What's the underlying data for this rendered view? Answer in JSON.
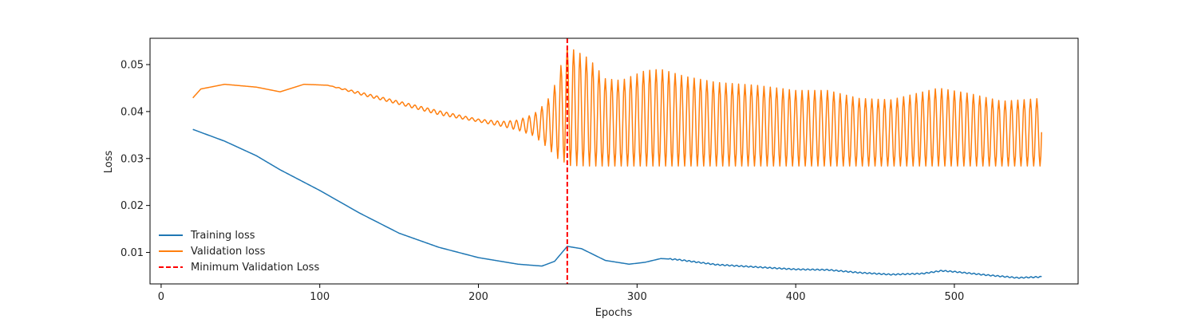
{
  "chart_data": {
    "type": "line",
    "xlabel": "Epochs",
    "ylabel": "Loss",
    "xlim": [
      -7,
      578
    ],
    "ylim": [
      0.0033,
      0.0556
    ],
    "x_ticks": [
      0,
      100,
      200,
      300,
      400,
      500
    ],
    "y_ticks": [
      0.01,
      0.02,
      0.03,
      0.04,
      0.05
    ],
    "x_tick_labels": [
      "0",
      "100",
      "200",
      "300",
      "400",
      "500"
    ],
    "y_tick_labels": [
      "0.01",
      "0.02",
      "0.03",
      "0.04",
      "0.05"
    ],
    "grid": false,
    "legend_position": "lower-left",
    "x_range": [
      20,
      555
    ],
    "series": [
      {
        "name": "Training loss",
        "color": "#1f77b4",
        "style": "solid",
        "points": [
          [
            20,
            0.0362
          ],
          [
            40,
            0.0337
          ],
          [
            60,
            0.0306
          ],
          [
            75,
            0.0276
          ],
          [
            100,
            0.0232
          ],
          [
            125,
            0.0184
          ],
          [
            150,
            0.0141
          ],
          [
            175,
            0.0111
          ],
          [
            200,
            0.0089
          ],
          [
            225,
            0.0075
          ],
          [
            240,
            0.0071
          ],
          [
            248,
            0.0081
          ],
          [
            256,
            0.0113
          ],
          [
            265,
            0.0108
          ],
          [
            280,
            0.0083
          ],
          [
            295,
            0.0075
          ],
          [
            305,
            0.0079
          ],
          [
            315,
            0.0087
          ],
          [
            325,
            0.0085
          ],
          [
            350,
            0.0074
          ],
          [
            375,
            0.0069
          ],
          [
            400,
            0.0064
          ],
          [
            420,
            0.0063
          ],
          [
            440,
            0.0057
          ],
          [
            460,
            0.0053
          ],
          [
            480,
            0.0055
          ],
          [
            492,
            0.0061
          ],
          [
            500,
            0.0059
          ],
          [
            520,
            0.0052
          ],
          [
            540,
            0.0046
          ],
          [
            555,
            0.0048
          ]
        ]
      },
      {
        "name": "Validation loss",
        "color": "#ff7f0e",
        "style": "solid",
        "oscillation_period": 4,
        "upper": [
          [
            20,
            0.0429
          ],
          [
            25,
            0.0448
          ],
          [
            40,
            0.0458
          ],
          [
            60,
            0.0452
          ],
          [
            75,
            0.0442
          ],
          [
            90,
            0.0458
          ],
          [
            105,
            0.0456
          ],
          [
            125,
            0.0442
          ],
          [
            150,
            0.0422
          ],
          [
            175,
            0.0402
          ],
          [
            200,
            0.0384
          ],
          [
            215,
            0.0379
          ],
          [
            225,
            0.0382
          ],
          [
            235,
            0.0395
          ],
          [
            243,
            0.042
          ],
          [
            250,
            0.047
          ],
          [
            255,
            0.054
          ],
          [
            262,
            0.0528
          ],
          [
            270,
            0.0512
          ],
          [
            280,
            0.047
          ],
          [
            290,
            0.0466
          ],
          [
            305,
            0.0487
          ],
          [
            315,
            0.049
          ],
          [
            330,
            0.0475
          ],
          [
            350,
            0.0462
          ],
          [
            375,
            0.0456
          ],
          [
            400,
            0.0445
          ],
          [
            420,
            0.0445
          ],
          [
            440,
            0.0428
          ],
          [
            460,
            0.0425
          ],
          [
            490,
            0.045
          ],
          [
            510,
            0.0438
          ],
          [
            530,
            0.0422
          ],
          [
            555,
            0.0428
          ]
        ],
        "lower": [
          [
            20,
            0.0429
          ],
          [
            25,
            0.0448
          ],
          [
            40,
            0.0458
          ],
          [
            60,
            0.0452
          ],
          [
            75,
            0.0442
          ],
          [
            90,
            0.0458
          ],
          [
            105,
            0.0456
          ],
          [
            125,
            0.0436
          ],
          [
            150,
            0.0415
          ],
          [
            175,
            0.0393
          ],
          [
            200,
            0.0378
          ],
          [
            215,
            0.0368
          ],
          [
            225,
            0.036
          ],
          [
            235,
            0.0348
          ],
          [
            243,
            0.0325
          ],
          [
            250,
            0.03
          ],
          [
            258,
            0.0285
          ],
          [
            270,
            0.0284
          ],
          [
            300,
            0.0284
          ],
          [
            350,
            0.0284
          ],
          [
            400,
            0.0284
          ],
          [
            450,
            0.0284
          ],
          [
            500,
            0.0284
          ],
          [
            555,
            0.0284
          ]
        ]
      }
    ],
    "reference_lines": [
      {
        "name": "Minimum Validation Loss",
        "x": 256,
        "color": "#ff0000",
        "style": "dashed"
      }
    ]
  }
}
